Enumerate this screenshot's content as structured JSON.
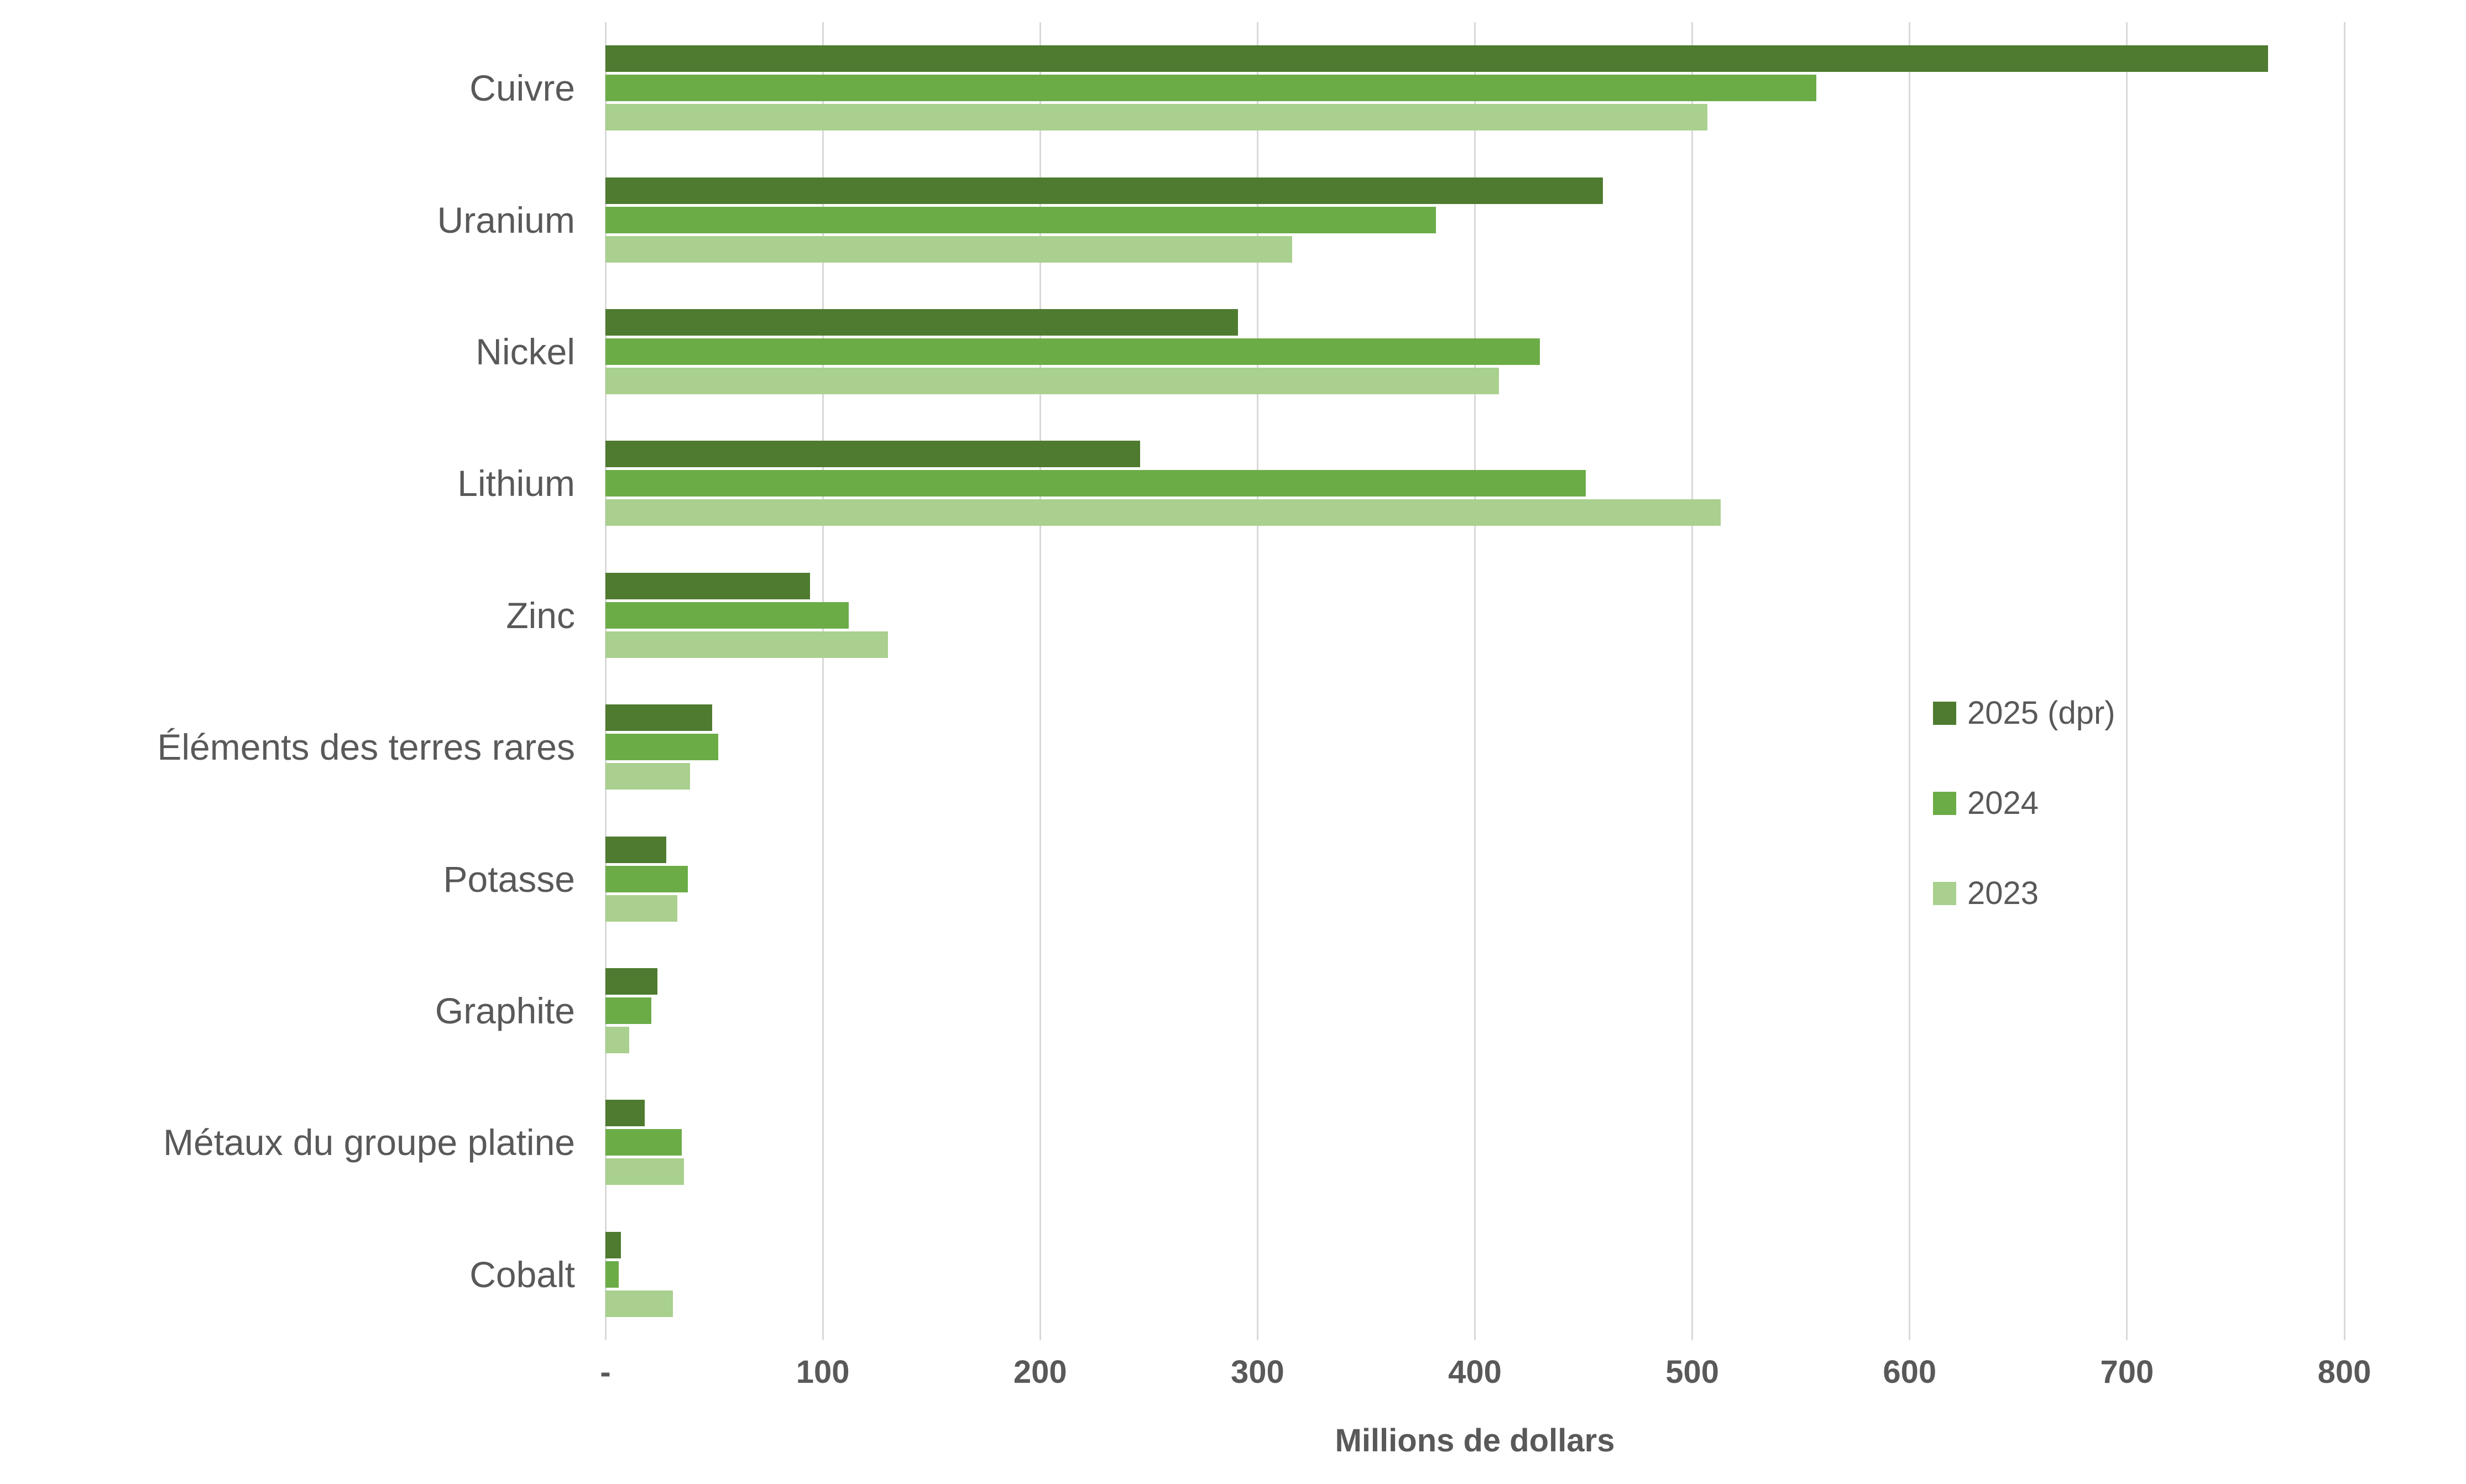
{
  "chart_data": {
    "type": "bar",
    "orientation": "horizontal",
    "title": "",
    "xlabel": "Millions de dollars",
    "xlim": [
      0,
      800
    ],
    "grid": "vertical",
    "gridline_color": "#d9d9d9",
    "text_color": "#595959",
    "background_color": "#ffffff",
    "legend_position": "right-middle",
    "x_ticks": [
      {
        "value": 0,
        "label": "-"
      },
      {
        "value": 100,
        "label": "100"
      },
      {
        "value": 200,
        "label": "200"
      },
      {
        "value": 300,
        "label": "300"
      },
      {
        "value": 400,
        "label": "400"
      },
      {
        "value": 500,
        "label": "500"
      },
      {
        "value": 600,
        "label": "600"
      },
      {
        "value": 700,
        "label": "700"
      },
      {
        "value": 800,
        "label": "800"
      }
    ],
    "categories": [
      "Cuivre",
      "Uranium",
      "Nickel",
      "Lithium",
      "Zinc",
      "Éléments des terres rares",
      "Potasse",
      "Graphite",
      "Métaux du groupe platine",
      "Cobalt"
    ],
    "series": [
      {
        "name": "2025 (dpr)",
        "color": "#4e7b2f",
        "values": [
          765,
          459,
          291,
          246,
          94,
          49,
          28,
          24,
          18,
          7
        ]
      },
      {
        "name": "2024",
        "color": "#6bac47",
        "values": [
          557,
          382,
          430,
          451,
          112,
          52,
          38,
          21,
          35,
          6
        ]
      },
      {
        "name": "2023",
        "color": "#a9d08e",
        "values": [
          507,
          316,
          411,
          513,
          130,
          39,
          33,
          11,
          36,
          31
        ]
      }
    ]
  }
}
